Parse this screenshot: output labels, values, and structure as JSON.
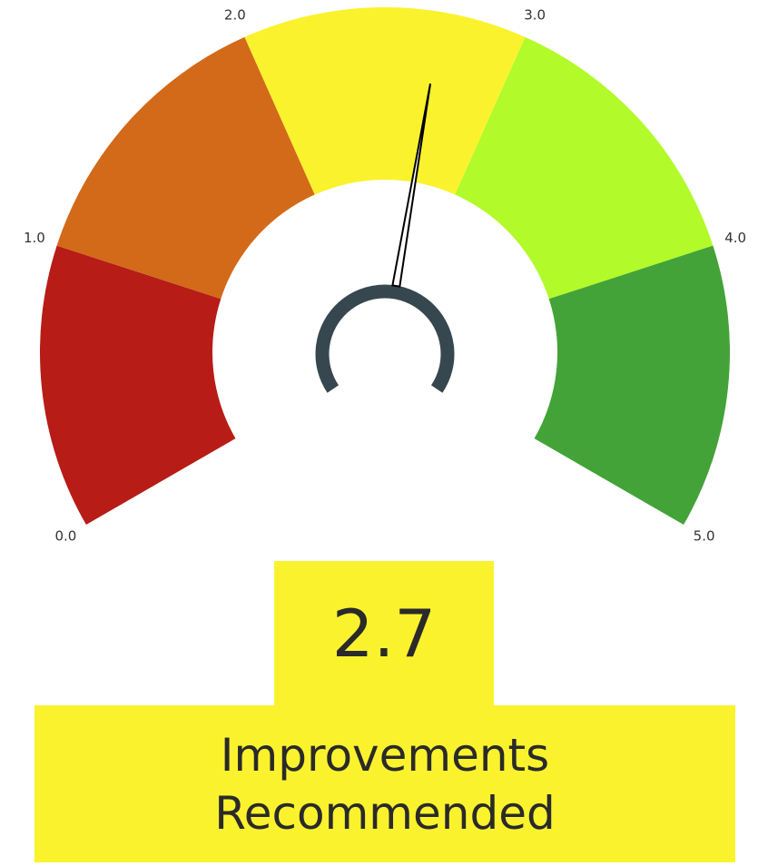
{
  "chart_data": {
    "type": "gauge",
    "value": 2.7,
    "status": "Improvements Recommended",
    "lim": [
      0,
      5
    ],
    "ticks": [
      {
        "value": 0,
        "label": "0.0"
      },
      {
        "value": 1,
        "label": "1.0"
      },
      {
        "value": 2,
        "label": "2.0"
      },
      {
        "value": 3,
        "label": "3.0"
      },
      {
        "value": 4,
        "label": "4.0"
      },
      {
        "value": 5,
        "label": "5.0"
      }
    ],
    "colors": [
      "#b71c17",
      "#d26a19",
      "#fbf22e",
      "#b2fa2a",
      "#43a338"
    ],
    "box_color": "#fbf22e",
    "hub_color": "#37474f"
  }
}
